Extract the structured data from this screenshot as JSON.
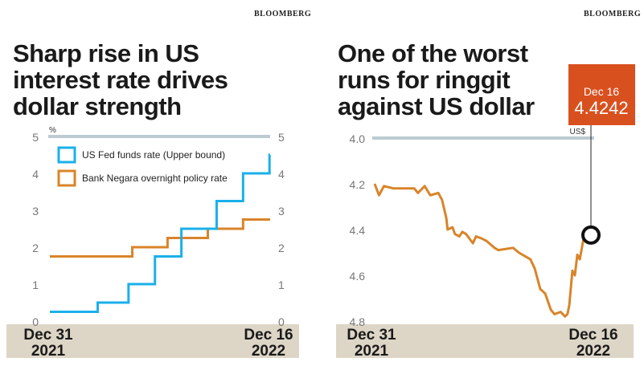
{
  "colors": {
    "fed": "#1ab0ea",
    "bnm": "#d9842a",
    "ringgit": "#d9842a",
    "callout": "#d9501f",
    "band": "#ddd5c6",
    "gridtop": "#bccbd1"
  },
  "chart_data": [
    {
      "type": "line",
      "step": true,
      "source": "BLOOMBERG",
      "title": "Sharp rise in US interest rate drives dollar strength",
      "ylabel": "%",
      "ylim": [
        0,
        5
      ],
      "yticks": [
        0,
        1,
        2,
        3,
        4,
        5
      ],
      "xlim": [
        "2021-12-31",
        "2022-12-16"
      ],
      "xticks": [
        {
          "line1": "Dec 31",
          "line2": "2021"
        },
        {
          "line1": "Dec 16",
          "line2": "2022"
        }
      ],
      "legend": "top-left",
      "series": [
        {
          "name": "US Fed funds rate (Upper bound)",
          "color": "#1ab0ea",
          "points": [
            [
              "2021-12-31",
              0.25
            ],
            [
              "2022-03-17",
              0.5
            ],
            [
              "2022-05-05",
              1.0
            ],
            [
              "2022-06-16",
              1.75
            ],
            [
              "2022-07-28",
              2.5
            ],
            [
              "2022-09-22",
              3.25
            ],
            [
              "2022-11-03",
              4.0
            ],
            [
              "2022-12-15",
              4.5
            ],
            [
              "2022-12-16",
              4.5
            ]
          ]
        },
        {
          "name": "Bank Negara overnight policy rate",
          "color": "#d9842a",
          "points": [
            [
              "2021-12-31",
              1.75
            ],
            [
              "2022-05-11",
              2.0
            ],
            [
              "2022-07-06",
              2.25
            ],
            [
              "2022-09-08",
              2.5
            ],
            [
              "2022-11-03",
              2.75
            ],
            [
              "2022-12-16",
              2.75
            ]
          ]
        }
      ]
    },
    {
      "type": "line",
      "source": "BLOOMBERG",
      "title": "One of the worst runs for ringgit against US dollar",
      "ylabel": "US$",
      "ylim": [
        4.0,
        4.8
      ],
      "y_inverted": true,
      "yticks": [
        "4.0",
        "4.2",
        "4.4",
        "4.6",
        "4.8"
      ],
      "xlim": [
        "2021-12-31",
        "2022-12-16"
      ],
      "xticks": [
        {
          "line1": "Dec 31",
          "line2": "2021"
        },
        {
          "line1": "Dec 16",
          "line2": "2022"
        }
      ],
      "callout": {
        "date": "Dec 16",
        "value": "4.4242"
      },
      "series": [
        {
          "color": "#d9842a",
          "points": [
            [
              "2021-12-31",
              4.2
            ],
            [
              "2022-01-07",
              4.25
            ],
            [
              "2022-01-15",
              4.21
            ],
            [
              "2022-01-30",
              4.22
            ],
            [
              "2022-02-20",
              4.22
            ],
            [
              "2022-03-05",
              4.22
            ],
            [
              "2022-03-11",
              4.24
            ],
            [
              "2022-03-22",
              4.21
            ],
            [
              "2022-03-31",
              4.25
            ],
            [
              "2022-04-13",
              4.24
            ],
            [
              "2022-04-19",
              4.27
            ],
            [
              "2022-04-26",
              4.35
            ],
            [
              "2022-04-28",
              4.4
            ],
            [
              "2022-05-06",
              4.39
            ],
            [
              "2022-05-10",
              4.42
            ],
            [
              "2022-05-17",
              4.43
            ],
            [
              "2022-05-22",
              4.41
            ],
            [
              "2022-05-28",
              4.42
            ],
            [
              "2022-06-08",
              4.46
            ],
            [
              "2022-06-13",
              4.43
            ],
            [
              "2022-06-23",
              4.44
            ],
            [
              "2022-06-30",
              4.45
            ],
            [
              "2022-07-13",
              4.48
            ],
            [
              "2022-07-19",
              4.49
            ],
            [
              "2022-08-12",
              4.48
            ],
            [
              "2022-08-21",
              4.5
            ],
            [
              "2022-08-27",
              4.51
            ],
            [
              "2022-09-09",
              4.53
            ],
            [
              "2022-09-16",
              4.57
            ],
            [
              "2022-09-25",
              4.66
            ],
            [
              "2022-10-03",
              4.68
            ],
            [
              "2022-10-12",
              4.75
            ],
            [
              "2022-10-18",
              4.77
            ],
            [
              "2022-10-28",
              4.76
            ],
            [
              "2022-11-04",
              4.78
            ],
            [
              "2022-11-08",
              4.77
            ],
            [
              "2022-11-11",
              4.73
            ],
            [
              "2022-11-16",
              4.58
            ],
            [
              "2022-11-20",
              4.6
            ],
            [
              "2022-11-24",
              4.51
            ],
            [
              "2022-11-28",
              4.53
            ],
            [
              "2022-12-02",
              4.47
            ],
            [
              "2022-12-06",
              4.41
            ],
            [
              "2022-12-09",
              4.45
            ],
            [
              "2022-12-16",
              4.4242
            ]
          ]
        }
      ]
    }
  ]
}
